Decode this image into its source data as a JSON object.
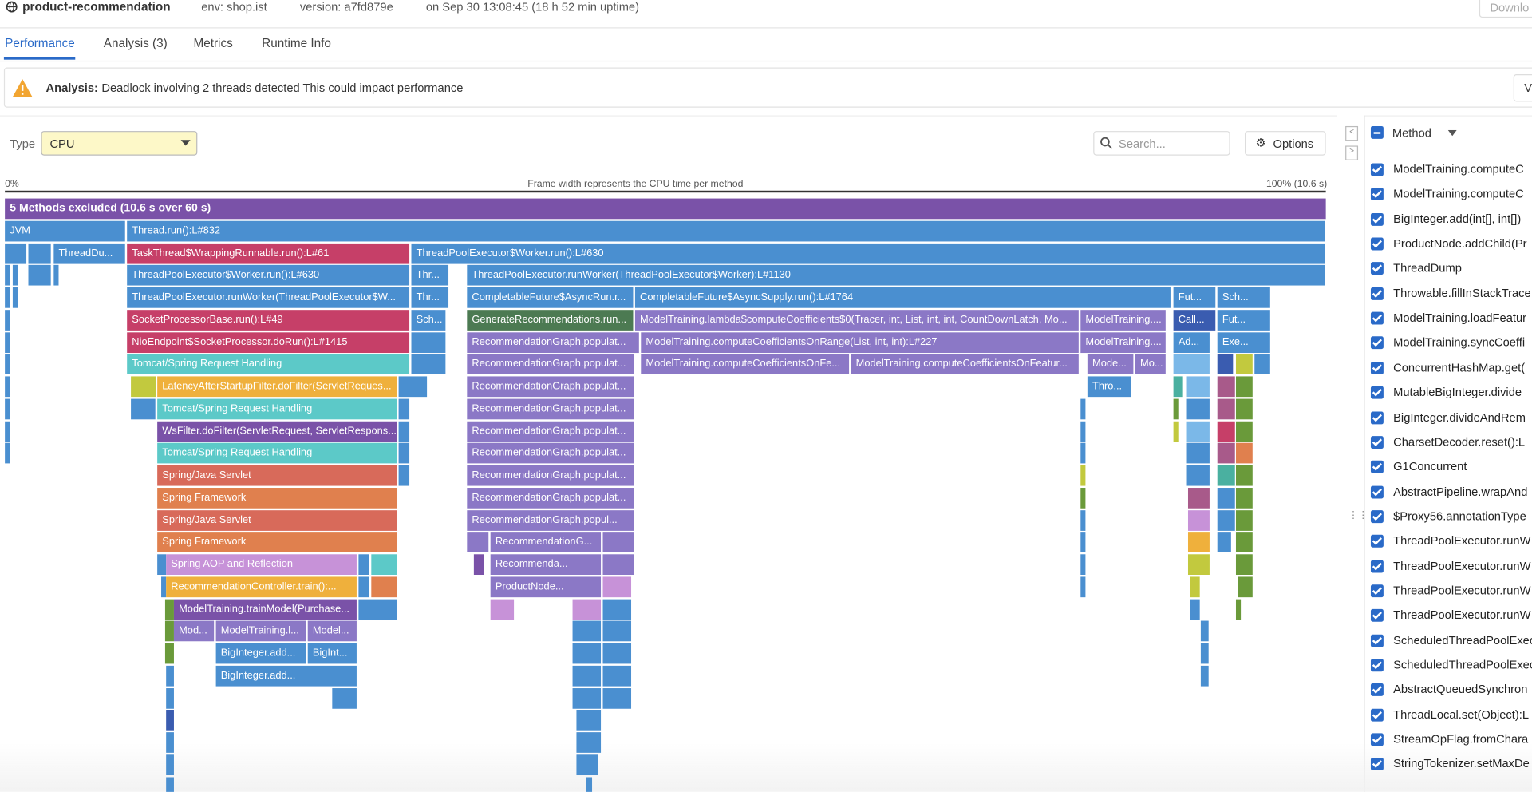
{
  "header": {
    "service": "product-recommendation",
    "env": "env: shop.ist",
    "version": "version: a7fd879e",
    "started": "on Sep 30 13:08:45 (18 h 52 min uptime)",
    "download": "Downlo"
  },
  "tabs": [
    "Performance",
    "Analysis (3)",
    "Metrics",
    "Runtime Info"
  ],
  "banner": {
    "label": "Analysis:",
    "message": "Deadlock involving 2 threads detected This could impact performance",
    "button": "V"
  },
  "toolbar": {
    "type_label": "Type",
    "type_value": "CPU",
    "search": "Search...",
    "options": "Options"
  },
  "axis": {
    "start": "0%",
    "caption": "Frame width represents the CPU time per method",
    "end": "100% (10.6 s)"
  },
  "flame": {
    "frames": [
      "5 Methods excluded (10.6 s over 60 s)",
      "JVM",
      "Thread.run():L#832",
      "ThreadDu...",
      "TaskThread$WrappingRunnable.run():L#61",
      "ThreadPoolExecutor$Worker.run():L#630",
      "ThreadPoolExecutor$Worker.run():L#630",
      "Thr...",
      "ThreadPoolExecutor.runWorker(ThreadPoolExecutor$Worker):L#1130",
      "ThreadPoolExecutor.runWorker(ThreadPoolExecutor$W...",
      "Thr...",
      "CompletableFuture$AsyncRun.r...",
      "CompletableFuture$AsyncSupply.run():L#1764",
      "Fut...",
      "Sch...",
      "SocketProcessorBase.run():L#49",
      "Sch...",
      "GenerateRecommendations.run...",
      "ModelTraining.lambda$computeCoefficients$0(Tracer, int, List, int, int, CountDownLatch, Mo...",
      "ModelTraining....",
      "Call...",
      "Fut...",
      "NioEndpoint$SocketProcessor.doRun():L#1415",
      "RecommendationGraph.populat...",
      "ModelTraining.computeCoefficientsOnRange(List, int, int):L#227",
      "ModelTraining....",
      "Ad...",
      "Exe...",
      "Tomcat/Spring Request Handling",
      "RecommendationGraph.populat...",
      "ModelTraining.computeCoefficientsOnFe...",
      "ModelTraining.computeCoefficientsOnFeatur...",
      "Mode...",
      "Mo...",
      "LatencyAfterStartupFilter.doFilter(ServletReques...",
      "RecommendationGraph.populat...",
      "Thro...",
      "Tomcat/Spring Request Handling",
      "RecommendationGraph.populat...",
      "WsFilter.doFilter(ServletRequest, ServletRespons...",
      "RecommendationGraph.populat...",
      "Tomcat/Spring Request Handling",
      "RecommendationGraph.populat...",
      "Spring/Java Servlet",
      "RecommendationGraph.populat...",
      "Spring Framework",
      "RecommendationGraph.populat...",
      "Spring/Java Servlet",
      "RecommendationGraph.popul...",
      "Spring Framework",
      "RecommendationG...",
      "Spring AOP and Reflection",
      "Recommenda...",
      "RecommendationController.train():...",
      "ProductNode...",
      "ModelTraining.trainModel(Purchase...",
      "Mod...",
      "ModelTraining.l...",
      "Model...",
      "BigInteger.add...",
      "BigInt...",
      "BigInteger.add..."
    ]
  },
  "sidebar": {
    "header": "Method",
    "items": [
      "ModelTraining.computeC",
      "ModelTraining.computeC",
      "BigInteger.add(int[], int[])",
      "ProductNode.addChild(Pr",
      "ThreadDump",
      "Throwable.fillInStackTrace",
      "ModelTraining.loadFeatur",
      "ModelTraining.syncCoeffi",
      "ConcurrentHashMap.get(",
      "MutableBigInteger.divide",
      "BigInteger.divideAndRem",
      "CharsetDecoder.reset():L",
      "G1Concurrent",
      "AbstractPipeline.wrapAnd",
      "$Proxy56.annotationType",
      "ThreadPoolExecutor.runW",
      "ThreadPoolExecutor.runW",
      "ThreadPoolExecutor.runW",
      "ThreadPoolExecutor.runW",
      "ScheduledThreadPoolExec",
      "ScheduledThreadPoolExec",
      "AbstractQueuedSynchron",
      "ThreadLocal.set(Object):L",
      "StreamOpFlag.fromChara",
      "StringTokenizer.setMaxDe"
    ]
  }
}
